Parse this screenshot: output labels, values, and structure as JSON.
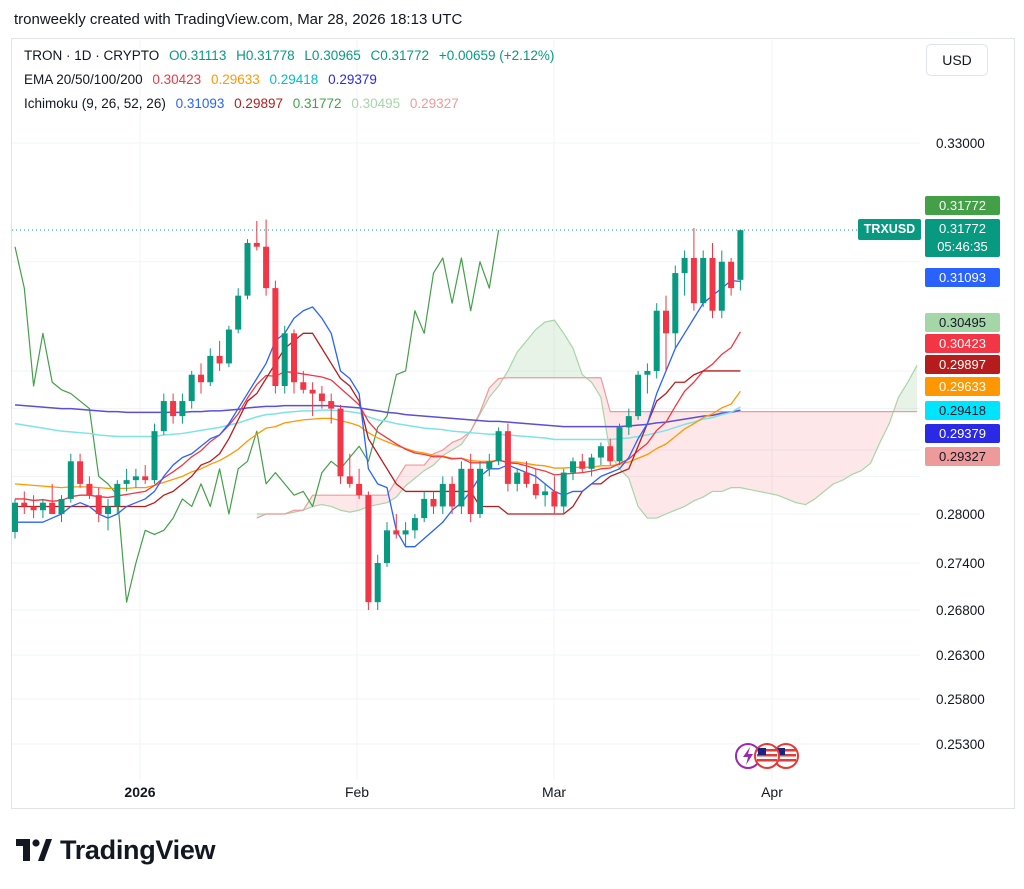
{
  "header": {
    "text": "tronweekly created with TradingView.com, Mar 28, 2026 18:13 UTC"
  },
  "legend": {
    "symbol": "TRON · 1D · CRYPTO",
    "ohlc": {
      "o": "O0.31113",
      "h": "H0.31778",
      "l": "L0.30965",
      "c": "C0.31772",
      "change": "+0.00659 (+2.12%)"
    },
    "ema": {
      "label": "EMA 20/50/100/200",
      "v20": "0.30423",
      "v50": "0.29633",
      "v100": "0.29418",
      "v200": "0.29379"
    },
    "ichimoku": {
      "label": "Ichimoku (9, 26, 52, 26)",
      "conversion": "0.31093",
      "base": "0.29897",
      "lagging": "0.31772",
      "spanA": "0.30495",
      "spanB": "0.29327"
    }
  },
  "currency_button": "USD",
  "ticker_tag": "TRXUSD",
  "last_price": {
    "value": "0.31772",
    "countdown": "05:46:35"
  },
  "right_badges": [
    {
      "label": "0.31772",
      "color": "#43a047"
    },
    {
      "label": "0.31093",
      "color": "#2962ff"
    },
    {
      "label": "0.30495",
      "color": "#a5d6a7"
    },
    {
      "label": "0.30423",
      "color": "#f23645"
    },
    {
      "label": "0.29897",
      "color": "#b71c1c"
    },
    {
      "label": "0.29633",
      "color": "#ff9800"
    },
    {
      "label": "0.29418",
      "color": "#00e5ff"
    },
    {
      "label": "0.29379",
      "color": "#2a2ae6"
    },
    {
      "label": "0.29327",
      "color": "#ef9a9a"
    }
  ],
  "colors": {
    "up": "#089981",
    "down": "#f23645",
    "ema20": "#f23645",
    "ema50": "#ff9800",
    "ema100": "#7de3e6",
    "ema200": "#5b4fd6",
    "conversion": "#2962ff",
    "base": "#b71c1c",
    "lagging": "#43a047",
    "spanA": "#a5d6a7",
    "spanB": "#ef9a9a"
  },
  "footer": {
    "brand": "TradingView",
    "logo_icon": "tradingview-logo-icon"
  },
  "flag_icons": [
    "lightning-icon",
    "us-flag-icon",
    "us-flag-icon"
  ],
  "chart_data": {
    "type": "candlestick",
    "y_ticks": [
      0.33,
      0.28,
      0.274,
      0.268,
      0.263,
      0.258,
      0.253
    ],
    "y_tick_labels": [
      "0.33000",
      "0.28000",
      "0.27400",
      "0.26800",
      "0.26300",
      "0.25800",
      "0.25300"
    ],
    "x_labels": [
      "2026",
      "Feb",
      "Mar",
      "Apr"
    ],
    "grid": true,
    "candles": [
      [
        0.2778,
        0.282,
        0.277,
        0.2815
      ],
      [
        0.2815,
        0.283,
        0.28,
        0.281
      ],
      [
        0.281,
        0.2825,
        0.2795,
        0.2805
      ],
      [
        0.2805,
        0.282,
        0.2795,
        0.2815
      ],
      [
        0.2815,
        0.284,
        0.28,
        0.28
      ],
      [
        0.28,
        0.2825,
        0.279,
        0.282
      ],
      [
        0.282,
        0.288,
        0.2815,
        0.287
      ],
      [
        0.287,
        0.288,
        0.2835,
        0.284
      ],
      [
        0.284,
        0.285,
        0.282,
        0.2825
      ],
      [
        0.2825,
        0.2835,
        0.279,
        0.28
      ],
      [
        0.28,
        0.282,
        0.278,
        0.281
      ],
      [
        0.281,
        0.2845,
        0.28,
        0.284
      ],
      [
        0.284,
        0.286,
        0.283,
        0.2845
      ],
      [
        0.2845,
        0.286,
        0.2835,
        0.285
      ],
      [
        0.285,
        0.2865,
        0.284,
        0.2845
      ],
      [
        0.2845,
        0.292,
        0.284,
        0.291
      ],
      [
        0.291,
        0.296,
        0.2905,
        0.295
      ],
      [
        0.295,
        0.296,
        0.292,
        0.293
      ],
      [
        0.293,
        0.296,
        0.292,
        0.295
      ],
      [
        0.295,
        0.299,
        0.294,
        0.2985
      ],
      [
        0.2985,
        0.3,
        0.296,
        0.2975
      ],
      [
        0.2975,
        0.302,
        0.297,
        0.301
      ],
      [
        0.301,
        0.303,
        0.299,
        0.3
      ],
      [
        0.3,
        0.305,
        0.2995,
        0.3045
      ],
      [
        0.3045,
        0.31,
        0.304,
        0.309
      ],
      [
        0.309,
        0.3165,
        0.3085,
        0.316
      ],
      [
        0.316,
        0.319,
        0.315,
        0.3155
      ],
      [
        0.3155,
        0.3192,
        0.309,
        0.31
      ],
      [
        0.31,
        0.311,
        0.296,
        0.297
      ],
      [
        0.297,
        0.305,
        0.296,
        0.304
      ],
      [
        0.304,
        0.3045,
        0.296,
        0.2975
      ],
      [
        0.2975,
        0.299,
        0.296,
        0.2965
      ],
      [
        0.2965,
        0.2975,
        0.293,
        0.296
      ],
      [
        0.296,
        0.297,
        0.294,
        0.295
      ],
      [
        0.295,
        0.296,
        0.292,
        0.294
      ],
      [
        0.294,
        0.2945,
        0.284,
        0.285
      ],
      [
        0.285,
        0.288,
        0.2835,
        0.284
      ],
      [
        0.284,
        0.286,
        0.282,
        0.2825
      ],
      [
        0.2825,
        0.283,
        0.268,
        0.269
      ],
      [
        0.269,
        0.275,
        0.268,
        0.274
      ],
      [
        0.274,
        0.279,
        0.2735,
        0.278
      ],
      [
        0.278,
        0.28,
        0.277,
        0.2775
      ],
      [
        0.2775,
        0.279,
        0.276,
        0.278
      ],
      [
        0.278,
        0.28,
        0.277,
        0.2795
      ],
      [
        0.2795,
        0.283,
        0.279,
        0.282
      ],
      [
        0.282,
        0.283,
        0.28,
        0.281
      ],
      [
        0.281,
        0.285,
        0.28,
        0.284
      ],
      [
        0.284,
        0.285,
        0.28,
        0.281
      ],
      [
        0.281,
        0.287,
        0.28,
        0.286
      ],
      [
        0.286,
        0.288,
        0.279,
        0.28
      ],
      [
        0.28,
        0.287,
        0.2795,
        0.286
      ],
      [
        0.286,
        0.288,
        0.285,
        0.287
      ],
      [
        0.287,
        0.2915,
        0.2865,
        0.291
      ],
      [
        0.291,
        0.292,
        0.283,
        0.284
      ],
      [
        0.284,
        0.286,
        0.283,
        0.2855
      ],
      [
        0.2855,
        0.287,
        0.2835,
        0.284
      ],
      [
        0.284,
        0.286,
        0.282,
        0.2825
      ],
      [
        0.2825,
        0.284,
        0.281,
        0.283
      ],
      [
        0.283,
        0.285,
        0.28,
        0.281
      ],
      [
        0.281,
        0.286,
        0.28,
        0.2855
      ],
      [
        0.2855,
        0.2875,
        0.2845,
        0.287
      ],
      [
        0.287,
        0.288,
        0.2855,
        0.286
      ],
      [
        0.286,
        0.288,
        0.285,
        0.2875
      ],
      [
        0.2875,
        0.2895,
        0.2865,
        0.289
      ],
      [
        0.289,
        0.29,
        0.2865,
        0.287
      ],
      [
        0.287,
        0.292,
        0.2865,
        0.2915
      ],
      [
        0.2915,
        0.294,
        0.2905,
        0.293
      ],
      [
        0.293,
        0.299,
        0.2925,
        0.2985
      ],
      [
        0.2985,
        0.3,
        0.296,
        0.299
      ],
      [
        0.299,
        0.308,
        0.298,
        0.307
      ],
      [
        0.307,
        0.309,
        0.299,
        0.304
      ],
      [
        0.304,
        0.313,
        0.302,
        0.312
      ],
      [
        0.312,
        0.315,
        0.309,
        0.314
      ],
      [
        0.314,
        0.318,
        0.307,
        0.308
      ],
      [
        0.308,
        0.315,
        0.3075,
        0.314
      ],
      [
        0.314,
        0.316,
        0.306,
        0.307
      ],
      [
        0.307,
        0.315,
        0.306,
        0.3135
      ],
      [
        0.3135,
        0.314,
        0.309,
        0.31
      ],
      [
        0.3111,
        0.3178,
        0.3097,
        0.3177
      ]
    ],
    "ema20": [
      0.282,
      0.282,
      0.2818,
      0.2819,
      0.2817,
      0.2818,
      0.2823,
      0.2825,
      0.2825,
      0.2823,
      0.2822,
      0.2824,
      0.2826,
      0.2828,
      0.283,
      0.2838,
      0.2848,
      0.2856,
      0.2865,
      0.2876,
      0.2884,
      0.2896,
      0.2905,
      0.2918,
      0.2933,
      0.2954,
      0.2972,
      0.2984,
      0.2983,
      0.2989,
      0.2988,
      0.2986,
      0.2984,
      0.2982,
      0.2978,
      0.2967,
      0.2956,
      0.2945,
      0.2923,
      0.2909,
      0.2901,
      0.2893,
      0.2886,
      0.2881,
      0.2879,
      0.2876,
      0.2876,
      0.2873,
      0.2874,
      0.2868,
      0.2868,
      0.2868,
      0.2872,
      0.2868,
      0.2867,
      0.2864,
      0.286,
      0.2857,
      0.2852,
      0.2853,
      0.2854,
      0.2855,
      0.2857,
      0.286,
      0.2861,
      0.2867,
      0.2873,
      0.2884,
      0.2894,
      0.2911,
      0.2922,
      0.2943,
      0.2963,
      0.2975,
      0.299,
      0.2999,
      0.3012,
      0.3021,
      0.3042
    ],
    "ema50": [
      0.284,
      0.2839,
      0.2838,
      0.2837,
      0.2836,
      0.2835,
      0.2836,
      0.2836,
      0.2836,
      0.2835,
      0.2834,
      0.2834,
      0.2834,
      0.2835,
      0.2835,
      0.2838,
      0.2842,
      0.2846,
      0.285,
      0.2856,
      0.286,
      0.2866,
      0.2871,
      0.2878,
      0.2886,
      0.2897,
      0.2906,
      0.2914,
      0.2916,
      0.2921,
      0.2923,
      0.2925,
      0.2926,
      0.2927,
      0.2927,
      0.2924,
      0.2921,
      0.2917,
      0.2908,
      0.2901,
      0.2896,
      0.2891,
      0.2887,
      0.2883,
      0.2881,
      0.2878,
      0.2877,
      0.2874,
      0.2874,
      0.2871,
      0.287,
      0.287,
      0.2871,
      0.2869,
      0.2869,
      0.2867,
      0.2865,
      0.2864,
      0.2861,
      0.2861,
      0.2862,
      0.2862,
      0.2862,
      0.2864,
      0.2864,
      0.2866,
      0.2869,
      0.2874,
      0.2879,
      0.2887,
      0.2893,
      0.2903,
      0.2913,
      0.292,
      0.2928,
      0.2933,
      0.2941,
      0.2946,
      0.2963
    ],
    "ema100": [
      0.292,
      0.2918,
      0.2916,
      0.2914,
      0.2912,
      0.291,
      0.2909,
      0.2908,
      0.2907,
      0.2905,
      0.2904,
      0.2903,
      0.2903,
      0.2903,
      0.2903,
      0.2903,
      0.2905,
      0.2906,
      0.2907,
      0.2909,
      0.2911,
      0.2913,
      0.2915,
      0.2918,
      0.2921,
      0.2925,
      0.2929,
      0.2932,
      0.2933,
      0.2935,
      0.2936,
      0.2937,
      0.2937,
      0.2938,
      0.2938,
      0.2937,
      0.2936,
      0.2934,
      0.2929,
      0.2925,
      0.2923,
      0.292,
      0.2918,
      0.2916,
      0.2914,
      0.2913,
      0.2912,
      0.291,
      0.2909,
      0.2908,
      0.2907,
      0.2906,
      0.2906,
      0.2905,
      0.2904,
      0.2903,
      0.2902,
      0.2901,
      0.2899,
      0.2899,
      0.2899,
      0.2899,
      0.2899,
      0.2899,
      0.2899,
      0.29,
      0.2901,
      0.2903,
      0.2905,
      0.2908,
      0.2911,
      0.2915,
      0.2919,
      0.2922,
      0.2926,
      0.2928,
      0.2932,
      0.2935,
      0.2942
    ],
    "ema200": [
      0.2945,
      0.2944,
      0.2943,
      0.2942,
      0.2941,
      0.294,
      0.294,
      0.2939,
      0.2938,
      0.2937,
      0.2936,
      0.2936,
      0.2935,
      0.2935,
      0.2935,
      0.2935,
      0.2935,
      0.2935,
      0.2935,
      0.2936,
      0.2936,
      0.2937,
      0.2937,
      0.2938,
      0.2939,
      0.2941,
      0.2942,
      0.2943,
      0.2943,
      0.2944,
      0.2944,
      0.2944,
      0.2944,
      0.2944,
      0.2944,
      0.2943,
      0.2942,
      0.2941,
      0.2939,
      0.2937,
      0.2935,
      0.2934,
      0.2932,
      0.2931,
      0.293,
      0.2929,
      0.2928,
      0.2927,
      0.2926,
      0.2925,
      0.2924,
      0.2923,
      0.2923,
      0.2922,
      0.2921,
      0.292,
      0.2919,
      0.2918,
      0.2917,
      0.2916,
      0.2916,
      0.2916,
      0.2916,
      0.2916,
      0.2916,
      0.2916,
      0.2917,
      0.2918,
      0.2919,
      0.2921,
      0.2922,
      0.2924,
      0.2926,
      0.2928,
      0.293,
      0.2931,
      0.2934,
      0.2935,
      0.2938
    ],
    "conversion": [
      0.279,
      0.279,
      0.279,
      0.279,
      0.2795,
      0.28,
      0.281,
      0.2815,
      0.281,
      0.28,
      0.2795,
      0.28,
      0.281,
      0.2815,
      0.282,
      0.283,
      0.285,
      0.2865,
      0.2875,
      0.288,
      0.289,
      0.29,
      0.2905,
      0.292,
      0.294,
      0.296,
      0.298,
      0.3,
      0.303,
      0.304,
      0.306,
      0.307,
      0.3075,
      0.306,
      0.304,
      0.299,
      0.298,
      0.296,
      0.286,
      0.284,
      0.2835,
      0.278,
      0.276,
      0.276,
      0.277,
      0.278,
      0.279,
      0.2805,
      0.2815,
      0.283,
      0.285,
      0.286,
      0.286,
      0.2865,
      0.286,
      0.2855,
      0.285,
      0.284,
      0.283,
      0.2825,
      0.283,
      0.283,
      0.284,
      0.285,
      0.2855,
      0.286,
      0.2875,
      0.29,
      0.292,
      0.296,
      0.299,
      0.302,
      0.304,
      0.306,
      0.308,
      0.309,
      0.31,
      0.311,
      0.3109
    ],
    "base": [
      0.281,
      0.281,
      0.281,
      0.281,
      0.281,
      0.281,
      0.281,
      0.281,
      0.281,
      0.281,
      0.281,
      0.281,
      0.281,
      0.281,
      0.281,
      0.2815,
      0.2825,
      0.283,
      0.284,
      0.285,
      0.2865,
      0.287,
      0.288,
      0.29,
      0.2925,
      0.295,
      0.296,
      0.298,
      0.3,
      0.302,
      0.303,
      0.304,
      0.304,
      0.302,
      0.3,
      0.298,
      0.297,
      0.295,
      0.29,
      0.288,
      0.286,
      0.284,
      0.283,
      0.283,
      0.283,
      0.283,
      0.283,
      0.283,
      0.283,
      0.283,
      0.281,
      0.281,
      0.281,
      0.28,
      0.28,
      0.28,
      0.28,
      0.28,
      0.28,
      0.28,
      0.281,
      0.283,
      0.284,
      0.284,
      0.285,
      0.2855,
      0.286,
      0.289,
      0.292,
      0.295,
      0.296,
      0.2975,
      0.2975,
      0.2985,
      0.299,
      0.299,
      0.299,
      0.299,
      0.299
    ]
  }
}
